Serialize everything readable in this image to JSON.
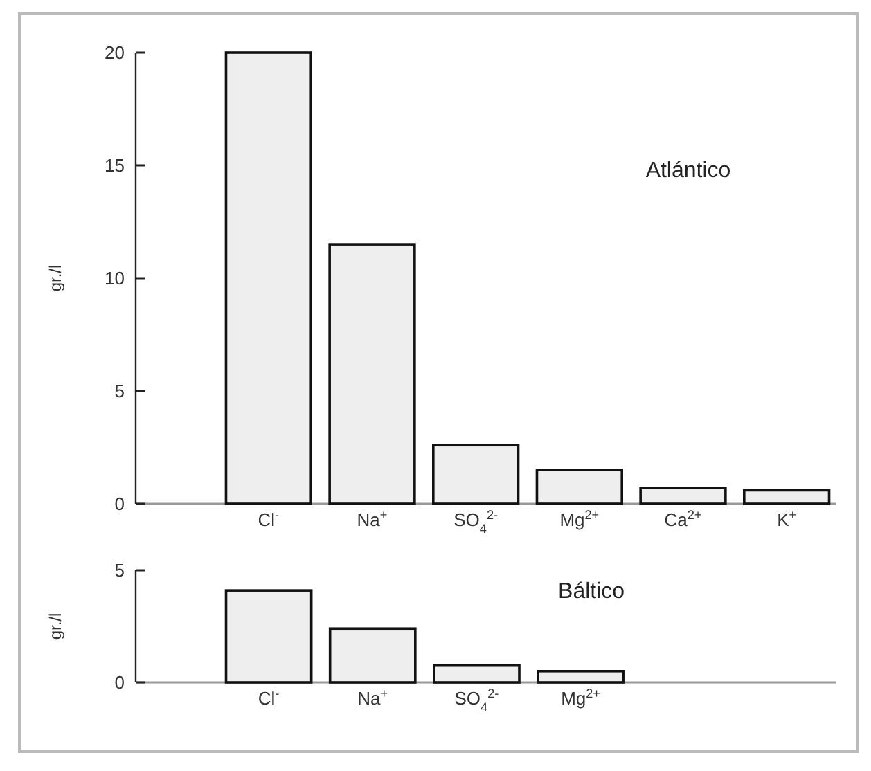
{
  "chart_data": [
    {
      "type": "bar",
      "title": "Atlántico",
      "ylabel": "gr./l",
      "categories": [
        "Cl$^{-}$",
        "Na$^{+}$",
        "SO$_{4}$$^{2-}$",
        "Mg$^{2+}$",
        "Ca$^{2+}$",
        "K$^{+}$"
      ],
      "values": [
        20,
        11.5,
        2.6,
        1.5,
        0.7,
        0.6
      ],
      "color": "#eeeeee",
      "ylim": [
        0,
        20
      ],
      "yticks": [
        0,
        5,
        10,
        15,
        20
      ]
    },
    {
      "type": "bar",
      "title": "Báltico",
      "ylabel": "gr./l",
      "categories": [
        "Cl$^{-}$",
        "Na$^{+}$",
        "SO$_{4}$$^{2-}$",
        "Mg$^{2+}$"
      ],
      "values": [
        4.1,
        2.4,
        0.75,
        0.5
      ],
      "color": "#eeeeee",
      "ylim": [
        0,
        5
      ],
      "yticks": [
        0,
        5
      ]
    }
  ]
}
